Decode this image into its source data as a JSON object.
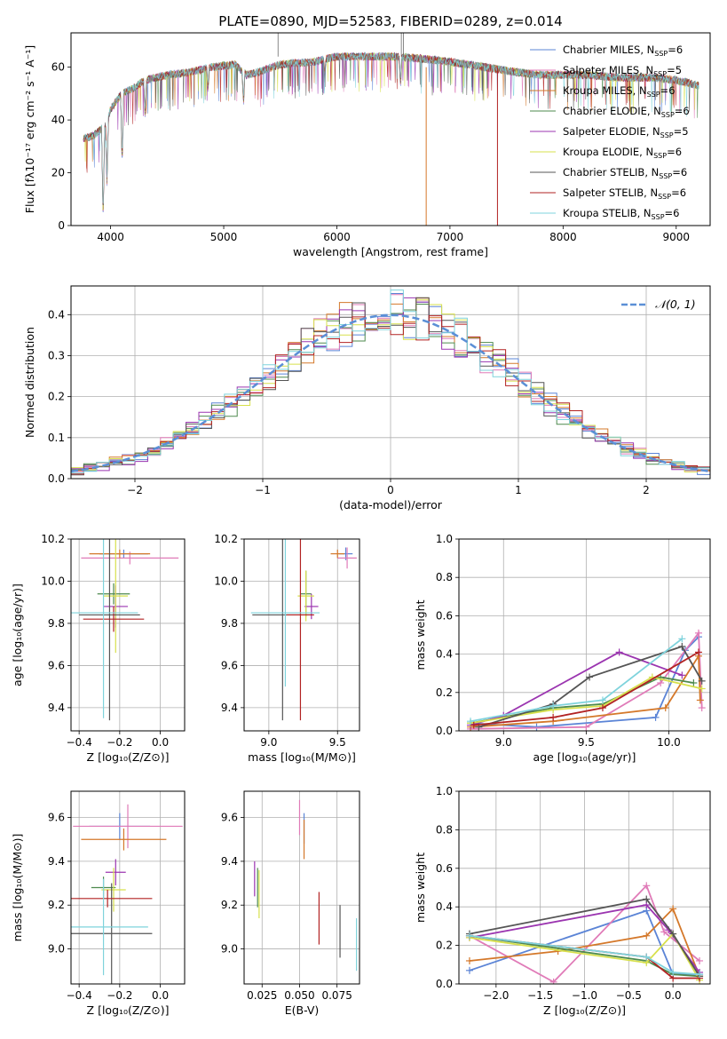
{
  "title": "PLATE=0890, MJD=52583, FIBERID=0289, z=0.014",
  "colors": {
    "Chabrier MILES": "#5b84d6",
    "Salpeter MILES": "#e07bb8",
    "Kroupa MILES": "#d4782a",
    "Chabrier ELODIE": "#4e8a4e",
    "Salpeter ELODIE": "#9b35b0",
    "Kroupa ELODIE": "#d7e04c",
    "Chabrier STELIB": "#555555",
    "Salpeter STELIB": "#b22222",
    "Kroupa STELIB": "#7fd3dc",
    "normal_curve": "#5b8fd6"
  },
  "chart_data": [
    {
      "id": "spectrum",
      "type": "line",
      "title": "PLATE=0890, MJD=52583, FIBERID=0289, z=0.014",
      "xlabel": "wavelength [Angstrom, rest frame]",
      "ylabel": "Flux [fλ10⁻¹⁷ erg cm⁻² s⁻¹ A⁻¹]",
      "xlim": [
        3650,
        9300
      ],
      "ylim": [
        0,
        73
      ],
      "xticks": [
        4000,
        5000,
        6000,
        7000,
        8000,
        9000
      ],
      "yticks": [
        0,
        20,
        40,
        60
      ],
      "grid": false,
      "legend_position": "top-right",
      "legend": [
        {
          "model": "Chabrier MILES",
          "nssp": "6"
        },
        {
          "model": "Salpeter MILES",
          "nssp": "5"
        },
        {
          "model": "Kroupa MILES",
          "nssp": "6"
        },
        {
          "model": "Chabrier ELODIE",
          "nssp": "6"
        },
        {
          "model": "Salpeter ELODIE",
          "nssp": "5"
        },
        {
          "model": "Kroupa ELODIE",
          "nssp": "6"
        },
        {
          "model": "Chabrier STELIB",
          "nssp": "6"
        },
        {
          "model": "Salpeter STELIB",
          "nssp": "6"
        },
        {
          "model": "Kroupa STELIB",
          "nssp": "6"
        }
      ],
      "continuum": {
        "x": [
          3760,
          3850,
          3950,
          4000,
          4100,
          4200,
          4300,
          4400,
          4500,
          4700,
          4900,
          5100,
          5200,
          5300,
          5500,
          5800,
          6000,
          6200,
          6500,
          6800,
          7000,
          7300,
          7600,
          7800,
          8000,
          8200,
          8500,
          8800,
          9000,
          9200
        ],
        "y": [
          33,
          34,
          38,
          44,
          50,
          52,
          55,
          56,
          57,
          58,
          60,
          61,
          57,
          58,
          61,
          62,
          64,
          64,
          64,
          63,
          62,
          60,
          58,
          57,
          57,
          57,
          56,
          56,
          55,
          53
        ]
      },
      "absorption_dips": [
        {
          "x": 3934,
          "y": 0
        },
        {
          "x": 3968,
          "y": 15
        },
        {
          "x": 4102,
          "y": 22
        },
        {
          "x": 4305,
          "y": 40
        },
        {
          "x": 4861,
          "y": 50
        },
        {
          "x": 5175,
          "y": 45
        },
        {
          "x": 5893,
          "y": 55
        },
        {
          "x": 6563,
          "y": 52
        }
      ],
      "model_drop_lines": [
        {
          "model": "Kroupa MILES",
          "x": 6790
        },
        {
          "model": "Salpeter STELIB",
          "x": 7420
        }
      ]
    },
    {
      "id": "residuals",
      "type": "bar",
      "xlabel": "(data-model)/error",
      "ylabel": "Normed distribution",
      "xlim": [
        -2.5,
        2.5
      ],
      "ylim": [
        0,
        0.47
      ],
      "xticks": [
        -2,
        -1,
        0,
        1,
        2
      ],
      "yticks": [
        0.0,
        0.1,
        0.2,
        0.3,
        0.4
      ],
      "grid": true,
      "legend_position": "top-right",
      "legend": [
        {
          "label": "𝒩(0, 1)"
        }
      ],
      "bin_width": 0.1,
      "reference_curve": {
        "mean": 0,
        "sigma": 1
      }
    },
    {
      "id": "age-vs-Z",
      "type": "scatter",
      "xlabel": "Z [log₁₀(Z/Z⊙)]",
      "ylabel": "age  [log₁₀(age/yr)]",
      "xlim": [
        -0.44,
        0.12
      ],
      "ylim": [
        9.29,
        10.2
      ],
      "xticks": [
        -0.4,
        -0.2,
        0.0
      ],
      "yticks": [
        9.4,
        9.6,
        9.8,
        10.0,
        10.2
      ],
      "grid": true,
      "points": [
        {
          "model": "Chabrier MILES",
          "x": -0.18,
          "y": 10.13,
          "xerr": 0.12,
          "yerr": 0.02
        },
        {
          "model": "Salpeter MILES",
          "x": -0.15,
          "y": 10.11,
          "xerr": 0.24,
          "yerr": 0.03
        },
        {
          "model": "Kroupa MILES",
          "x": -0.2,
          "y": 10.13,
          "xerr": 0.15,
          "yerr": 0.02
        },
        {
          "model": "Chabrier ELODIE",
          "x": -0.23,
          "y": 9.94,
          "xerr": 0.08,
          "yerr": 0.05
        },
        {
          "model": "Salpeter ELODIE",
          "x": -0.22,
          "y": 9.88,
          "xerr": 0.06,
          "yerr": 0.1
        },
        {
          "model": "Kroupa ELODIE",
          "x": -0.22,
          "y": 9.93,
          "xerr": 0.06,
          "yerr": 0.27
        },
        {
          "model": "Chabrier STELIB",
          "x": -0.25,
          "y": 9.84,
          "xerr": 0.15,
          "yerr": 0.5
        },
        {
          "model": "Salpeter STELIB",
          "x": -0.23,
          "y": 9.82,
          "xerr": 0.15,
          "yerr": 0.06
        },
        {
          "model": "Kroupa STELIB",
          "x": -0.28,
          "y": 9.85,
          "xerr": 0.17,
          "yerr": 0.5
        }
      ]
    },
    {
      "id": "age-vs-mass",
      "type": "scatter",
      "xlabel": "mass [log₁₀(M/M⊙)]",
      "ylabel": "",
      "xlim": [
        8.82,
        9.66
      ],
      "ylim": [
        9.29,
        10.2
      ],
      "xticks": [
        9.0,
        9.5
      ],
      "yticks": [
        9.4,
        9.6,
        9.8,
        10.0,
        10.2
      ],
      "grid": true,
      "points": [
        {
          "model": "Chabrier MILES",
          "x": 9.56,
          "y": 10.13,
          "xerr": 0.05,
          "yerr": 0.03
        },
        {
          "model": "Salpeter MILES",
          "x": 9.57,
          "y": 10.11,
          "xerr": 0.07,
          "yerr": 0.05
        },
        {
          "model": "Kroupa MILES",
          "x": 9.5,
          "y": 10.13,
          "xerr": 0.05,
          "yerr": 0.02
        },
        {
          "model": "Chabrier ELODIE",
          "x": 9.27,
          "y": 9.94,
          "xerr": 0.04,
          "yerr": 0.11
        },
        {
          "model": "Salpeter ELODIE",
          "x": 9.31,
          "y": 9.88,
          "xerr": 0.05,
          "yerr": 0.06
        },
        {
          "model": "Kroupa ELODIE",
          "x": 9.27,
          "y": 9.93,
          "xerr": 0.06,
          "yerr": 0.12
        },
        {
          "model": "Chabrier STELIB",
          "x": 9.1,
          "y": 9.84,
          "xerr": 0.22,
          "yerr": 0.5
        },
        {
          "model": "Salpeter STELIB",
          "x": 9.23,
          "y": 9.84,
          "xerr": 0.1,
          "yerr": 0.5
        },
        {
          "model": "Kroupa STELIB",
          "x": 9.12,
          "y": 9.85,
          "xerr": 0.25,
          "yerr": 0.35
        }
      ]
    },
    {
      "id": "massweight-vs-age",
      "type": "line",
      "xlabel": "age  [log₁₀(age/yr)]",
      "ylabel": "mass weight",
      "xlim": [
        8.73,
        10.25
      ],
      "ylim": [
        0,
        1.0
      ],
      "xticks": [
        9.0,
        9.5,
        10.0
      ],
      "yticks": [
        0.0,
        0.2,
        0.4,
        0.6,
        0.8,
        1.0
      ],
      "grid": true,
      "series": [
        {
          "model": "Chabrier MILES",
          "x": [
            8.8,
            9.2,
            9.92,
            10.1,
            10.18
          ],
          "y": [
            0.04,
            0.02,
            0.07,
            0.42,
            0.49
          ]
        },
        {
          "model": "Salpeter MILES",
          "x": [
            8.8,
            9.5,
            9.95,
            10.18,
            10.2
          ],
          "y": [
            0.01,
            0.02,
            0.25,
            0.51,
            0.12
          ]
        },
        {
          "model": "Kroupa MILES",
          "x": [
            8.8,
            9.3,
            9.98,
            10.18,
            10.19
          ],
          "y": [
            0.02,
            0.05,
            0.12,
            0.39,
            0.16
          ]
        },
        {
          "model": "Chabrier ELODIE",
          "x": [
            8.8,
            9.3,
            9.6,
            9.95,
            10.15
          ],
          "y": [
            0.04,
            0.12,
            0.14,
            0.28,
            0.25
          ]
        },
        {
          "model": "Salpeter ELODIE",
          "x": [
            8.8,
            9.0,
            9.7,
            10.08
          ],
          "y": [
            0.03,
            0.08,
            0.41,
            0.29
          ]
        },
        {
          "model": "Kroupa ELODIE",
          "x": [
            8.8,
            9.3,
            9.6,
            9.9,
            10.2
          ],
          "y": [
            0.04,
            0.11,
            0.13,
            0.28,
            0.22
          ]
        },
        {
          "model": "Chabrier STELIB",
          "x": [
            8.85,
            9.3,
            9.52,
            10.08,
            10.2
          ],
          "y": [
            0.02,
            0.14,
            0.28,
            0.44,
            0.26
          ]
        },
        {
          "model": "Salpeter STELIB",
          "x": [
            8.82,
            9.3,
            9.6,
            10.18
          ],
          "y": [
            0.03,
            0.07,
            0.12,
            0.41
          ]
        },
        {
          "model": "Kroupa STELIB",
          "x": [
            8.8,
            9.3,
            9.6,
            10.08
          ],
          "y": [
            0.05,
            0.13,
            0.16,
            0.48
          ]
        }
      ]
    },
    {
      "id": "mass-vs-Z",
      "type": "scatter",
      "xlabel": "Z [log₁₀(Z/Z⊙)]",
      "ylabel": "mass [log₁₀(M/M⊙)]",
      "xlim": [
        -0.44,
        0.12
      ],
      "ylim": [
        8.84,
        9.72
      ],
      "xticks": [
        -0.4,
        -0.2,
        0.0
      ],
      "yticks": [
        9.0,
        9.2,
        9.4,
        9.6
      ],
      "grid": true,
      "points": [
        {
          "model": "Chabrier MILES",
          "x": -0.2,
          "y": 9.56,
          "xerr": 0.15,
          "yerr": 0.06
        },
        {
          "model": "Salpeter MILES",
          "x": -0.16,
          "y": 9.56,
          "xerr": 0.27,
          "yerr": 0.1
        },
        {
          "model": "Kroupa MILES",
          "x": -0.18,
          "y": 9.5,
          "xerr": 0.21,
          "yerr": 0.05
        },
        {
          "model": "Chabrier ELODIE",
          "x": -0.28,
          "y": 9.28,
          "xerr": 0.06,
          "yerr": 0.05
        },
        {
          "model": "Salpeter ELODIE",
          "x": -0.22,
          "y": 9.35,
          "xerr": 0.05,
          "yerr": 0.06
        },
        {
          "model": "Kroupa ELODIE",
          "x": -0.23,
          "y": 9.27,
          "xerr": 0.06,
          "yerr": 0.1
        },
        {
          "model": "Chabrier STELIB",
          "x": -0.24,
          "y": 9.07,
          "xerr": 0.2,
          "yerr": 0.23
        },
        {
          "model": "Salpeter STELIB",
          "x": -0.26,
          "y": 9.23,
          "xerr": 0.22,
          "yerr": 0.04
        },
        {
          "model": "Kroupa STELIB",
          "x": -0.28,
          "y": 9.1,
          "xerr": 0.22,
          "yerr": 0.22
        }
      ]
    },
    {
      "id": "mass-vs-EBV",
      "type": "scatter",
      "xlabel": "E(B-V)",
      "ylabel": "",
      "xlim": [
        0.013,
        0.09
      ],
      "ylim": [
        8.84,
        9.72
      ],
      "xticks": [
        0.025,
        0.05,
        0.075
      ],
      "yticks": [
        9.0,
        9.2,
        9.4,
        9.6
      ],
      "grid": true,
      "points": [
        {
          "model": "Chabrier MILES",
          "x": 0.053,
          "y": 9.55,
          "yerr": 0.07
        },
        {
          "model": "Salpeter MILES",
          "x": 0.05,
          "y": 9.6,
          "yerr": 0.08
        },
        {
          "model": "Kroupa MILES",
          "x": 0.053,
          "y": 9.5,
          "yerr": 0.09
        },
        {
          "model": "Chabrier ELODIE",
          "x": 0.022,
          "y": 9.28,
          "yerr": 0.09
        },
        {
          "model": "Salpeter ELODIE",
          "x": 0.02,
          "y": 9.32,
          "yerr": 0.08
        },
        {
          "model": "Kroupa ELODIE",
          "x": 0.023,
          "y": 9.25,
          "yerr": 0.11
        },
        {
          "model": "Chabrier STELIB",
          "x": 0.077,
          "y": 9.08,
          "yerr": 0.12
        },
        {
          "model": "Salpeter STELIB",
          "x": 0.063,
          "y": 9.14,
          "yerr": 0.12
        },
        {
          "model": "Kroupa STELIB",
          "x": 0.088,
          "y": 9.02,
          "yerr": 0.12
        }
      ]
    },
    {
      "id": "massweight-vs-Z",
      "type": "line",
      "xlabel": "Z [log₁₀(Z/Z⊙)]",
      "ylabel": "mass weight",
      "xlim": [
        -2.42,
        0.42
      ],
      "ylim": [
        0,
        1.0
      ],
      "xticks": [
        -2.0,
        -1.5,
        -1.0,
        -0.5,
        0.0
      ],
      "yticks": [
        0.0,
        0.2,
        0.4,
        0.6,
        0.8,
        1.0
      ],
      "grid": true,
      "series": [
        {
          "model": "Chabrier MILES",
          "x": [
            -2.3,
            -0.3,
            0.0,
            0.3
          ],
          "y": [
            0.07,
            0.38,
            0.05,
            0.05
          ]
        },
        {
          "model": "Salpeter MILES",
          "x": [
            -2.3,
            -1.35,
            -0.3,
            -0.1,
            0.3
          ],
          "y": [
            0.25,
            0.01,
            0.51,
            0.27,
            0.12
          ]
        },
        {
          "model": "Kroupa MILES",
          "x": [
            -2.3,
            -1.3,
            -0.3,
            0.0,
            0.3
          ],
          "y": [
            0.12,
            0.17,
            0.25,
            0.39,
            0.04
          ]
        },
        {
          "model": "Chabrier ELODIE",
          "x": [
            -2.3,
            -0.3,
            0.0,
            0.3
          ],
          "y": [
            0.25,
            0.12,
            0.05,
            0.04
          ]
        },
        {
          "model": "Salpeter ELODIE",
          "x": [
            -2.3,
            -0.3,
            -0.05,
            0.3
          ],
          "y": [
            0.24,
            0.41,
            0.28,
            0.06
          ]
        },
        {
          "model": "Kroupa ELODIE",
          "x": [
            -2.3,
            -0.3,
            0.0,
            0.3
          ],
          "y": [
            0.24,
            0.11,
            0.26,
            0.02
          ]
        },
        {
          "model": "Chabrier STELIB",
          "x": [
            -2.3,
            -0.3,
            0.0,
            0.3
          ],
          "y": [
            0.26,
            0.44,
            0.26,
            0.04
          ]
        },
        {
          "model": "Salpeter STELIB",
          "x": [
            -2.3,
            -0.3,
            0.0,
            0.3
          ],
          "y": [
            0.25,
            0.14,
            0.03,
            0.03
          ]
        },
        {
          "model": "Kroupa STELIB",
          "x": [
            -2.3,
            -0.3,
            0.0,
            0.3
          ],
          "y": [
            0.25,
            0.14,
            0.06,
            0.05
          ]
        }
      ]
    }
  ]
}
